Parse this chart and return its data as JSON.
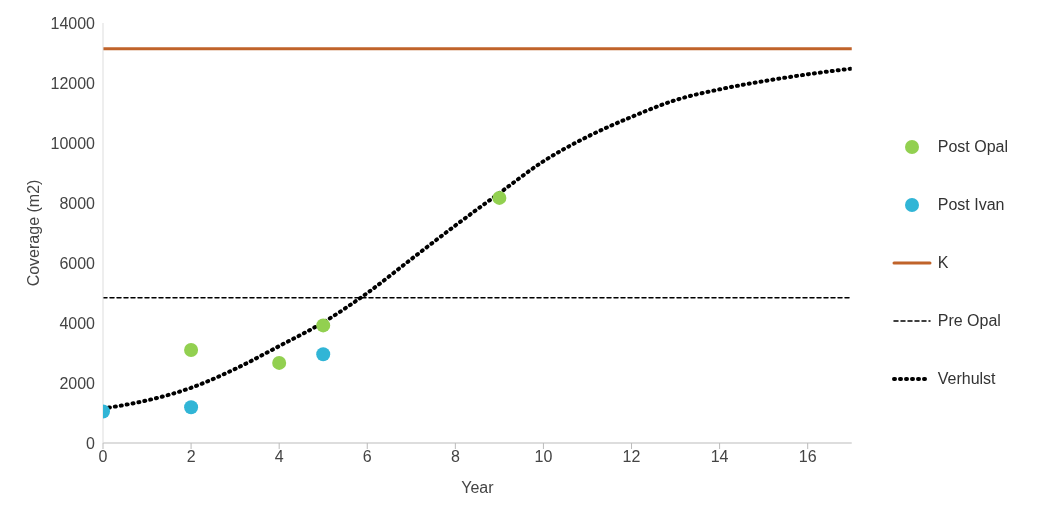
{
  "chart_data": {
    "type": "scatter",
    "xlabel": "Year",
    "ylabel": "Coverage (m2)",
    "xlim": [
      0,
      17
    ],
    "xticks": [
      0,
      2,
      4,
      6,
      8,
      10,
      12,
      14,
      16
    ],
    "ylim": [
      0,
      14000
    ],
    "yticks": [
      0,
      2000,
      4000,
      6000,
      8000,
      10000,
      12000,
      14000
    ],
    "grid": false,
    "legend": "right",
    "series": [
      {
        "name": "Post Opal",
        "marker": "circle",
        "color": "#92d050",
        "x": [
          2,
          4,
          5,
          9
        ],
        "values": [
          3100,
          2670,
          3920,
          8170
        ]
      },
      {
        "name": "Post Ivan",
        "marker": "circle",
        "color": "#31b5d6",
        "x": [
          0,
          2,
          5
        ],
        "values": [
          1050,
          1190,
          2960
        ]
      },
      {
        "name": "K",
        "type": "line",
        "marker": "none",
        "line_style": "solid",
        "color": "#c0632a",
        "x": [
          0,
          17
        ],
        "values": [
          13140,
          13140
        ]
      },
      {
        "name": "Pre Opal",
        "type": "line",
        "marker": "none",
        "line_style": "dashed",
        "color": "#000000",
        "x": [
          0,
          17
        ],
        "values": [
          4840,
          4840
        ]
      },
      {
        "name": "Verhulst",
        "type": "line",
        "marker": "none",
        "line_style": "dotted",
        "color": "#000000",
        "x": [
          0,
          1,
          2,
          3,
          4,
          5,
          6,
          7,
          8,
          9,
          10,
          11,
          12,
          13,
          14,
          15,
          16,
          17
        ],
        "values": [
          1150,
          1420,
          1840,
          2470,
          3230,
          4020,
          5000,
          6130,
          7250,
          8330,
          9390,
          10210,
          10870,
          11430,
          11790,
          12060,
          12290,
          12480
        ]
      }
    ]
  }
}
